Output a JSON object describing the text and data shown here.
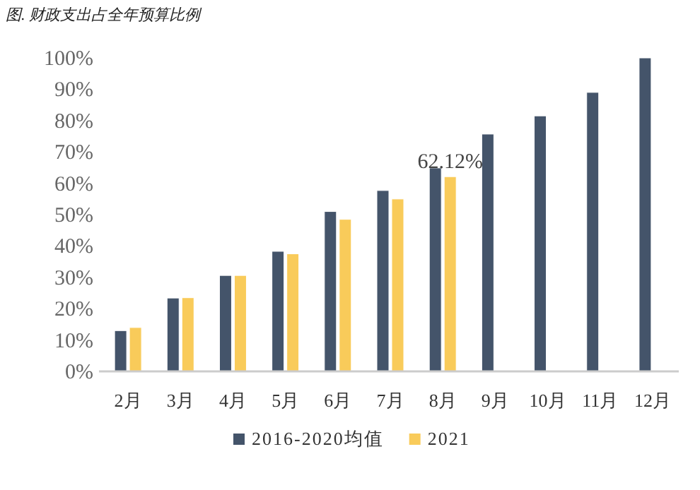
{
  "chart_data": {
    "type": "bar",
    "title": "图. 财政支出占全年预算比例",
    "categories": [
      "2月",
      "3月",
      "4月",
      "5月",
      "6月",
      "7月",
      "8月",
      "9月",
      "10月",
      "11月",
      "12月"
    ],
    "series": [
      {
        "name": "2016-2020均值",
        "color": "#44546a",
        "values": [
          13,
          23.4,
          30.6,
          38.3,
          51,
          57.7,
          64.9,
          75.7,
          81.5,
          89,
          100
        ]
      },
      {
        "name": "2021",
        "color": "#f9cb5a",
        "values": [
          14,
          23.5,
          30.6,
          37.5,
          48.5,
          55,
          62.12,
          null,
          null,
          null,
          null
        ],
        "value_labels": [
          null,
          null,
          null,
          null,
          null,
          null,
          "62.12%",
          null,
          null,
          null,
          null
        ]
      }
    ],
    "ylim": [
      0,
      100
    ],
    "yticks": [
      {
        "value": 0,
        "label": "0%"
      },
      {
        "value": 10,
        "label": "10%"
      },
      {
        "value": 20,
        "label": "20%"
      },
      {
        "value": 30,
        "label": "30%"
      },
      {
        "value": 40,
        "label": "40%"
      },
      {
        "value": 50,
        "label": "50%"
      },
      {
        "value": 60,
        "label": "60%"
      },
      {
        "value": 70,
        "label": "70%"
      },
      {
        "value": 80,
        "label": "80%"
      },
      {
        "value": 90,
        "label": "90%"
      },
      {
        "value": 100,
        "label": "100%"
      }
    ],
    "grid": false,
    "legend": "bottom"
  }
}
